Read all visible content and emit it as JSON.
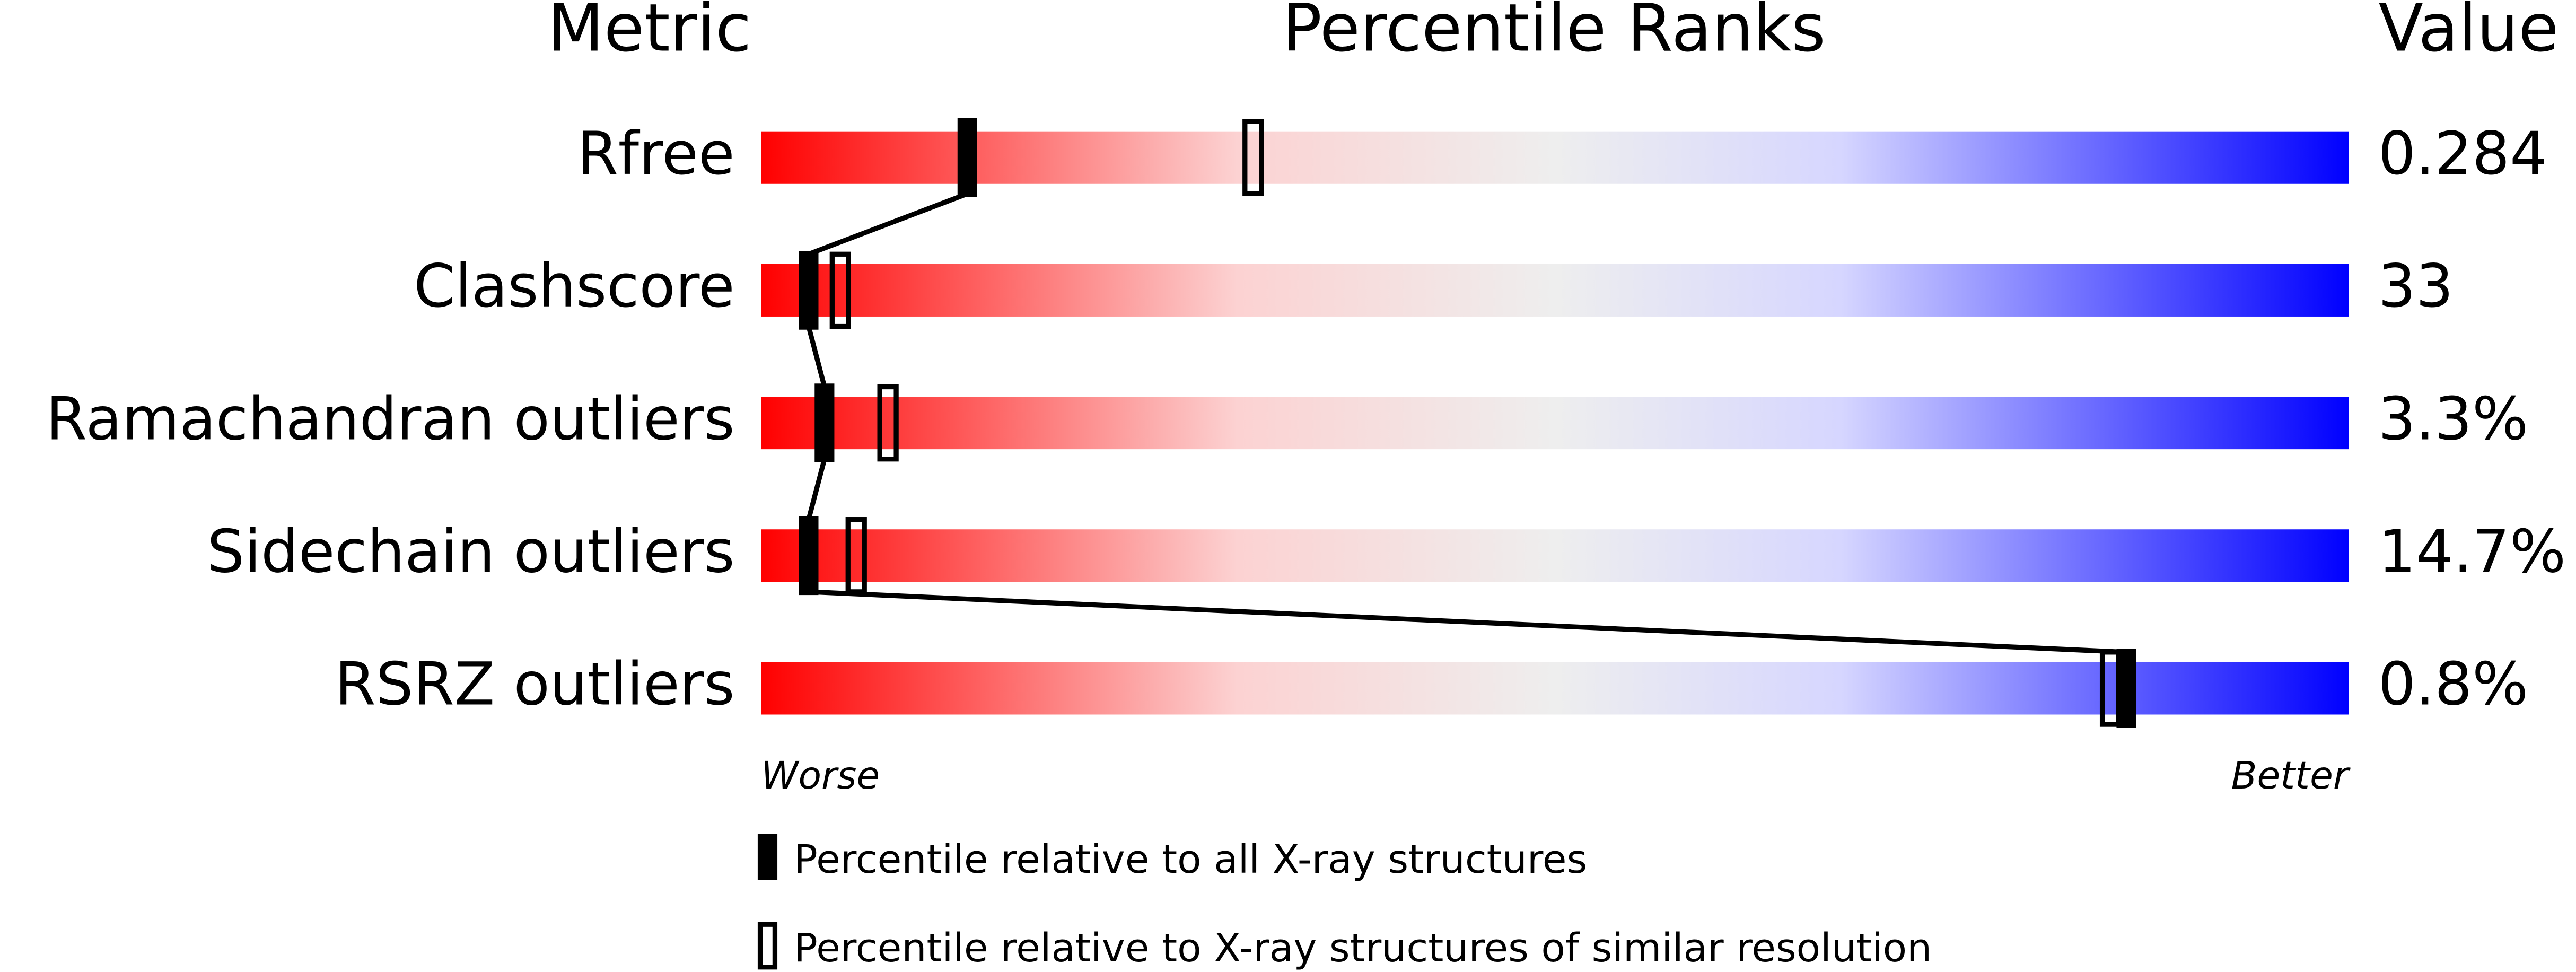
{
  "chart_data": {
    "type": "percentile",
    "column_headers": [
      "Metric",
      "Percentile Ranks",
      "Value"
    ],
    "categories": [
      "Rfree",
      "Clashscore",
      "Ramachandran outliers",
      "Sidechain outliers",
      "RSRZ outliers"
    ],
    "metric_values": [
      "0.284",
      "33",
      "3.3%",
      "14.7%",
      "0.8%"
    ],
    "xlim": [
      0,
      100
    ],
    "axis_end_labels": [
      "Worse",
      "Better"
    ],
    "series": [
      {
        "name": "Percentile relative to all X-ray structures",
        "style": "filled",
        "color": "#000000",
        "values": [
          13,
          3,
          4,
          3,
          86
        ]
      },
      {
        "name": "Percentile relative to X-ray structures of similar resolution",
        "style": "outline",
        "color": "#000000",
        "values": [
          31,
          5,
          8,
          6,
          85
        ]
      }
    ]
  }
}
